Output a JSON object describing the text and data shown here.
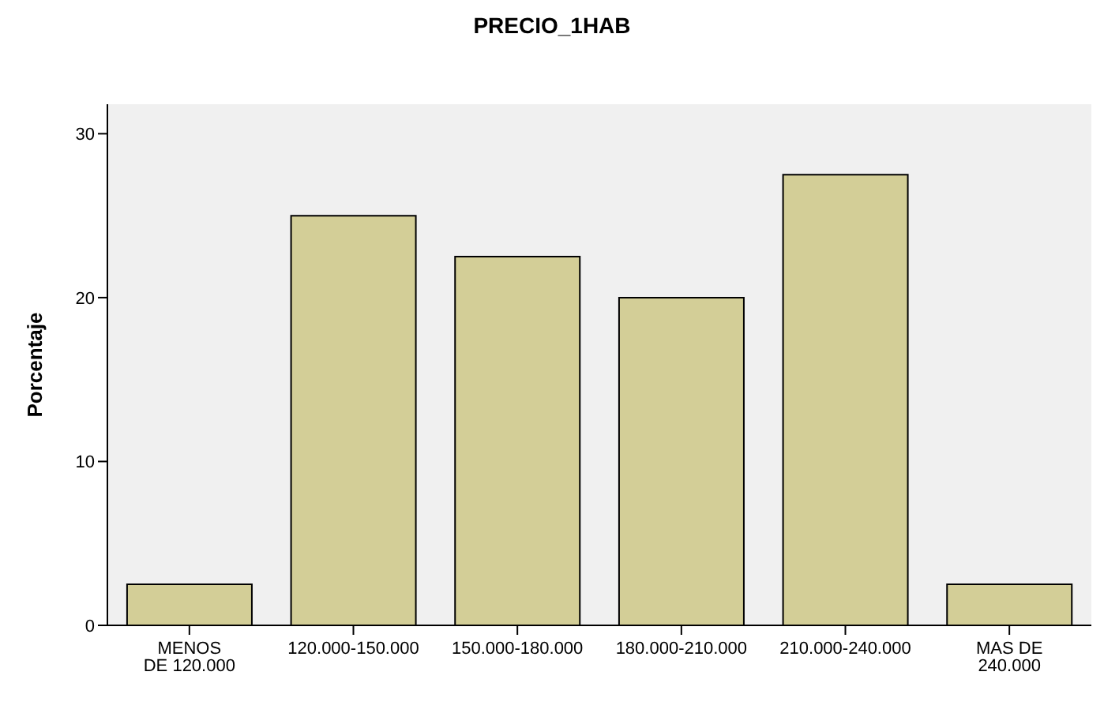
{
  "chart_data": {
    "type": "bar",
    "title": "PRECIO_1HAB",
    "ylabel": "Porcentaje",
    "categories": [
      "MENOS DE 120.000",
      "120.000-150.000",
      "150.000-180.000",
      "180.000-210.000",
      "210.000-240.000",
      "MAS DE 240.000"
    ],
    "values": [
      2.5,
      25,
      22.5,
      20,
      27.5,
      2.5
    ],
    "color": "#d3ce97",
    "ylim": [
      0,
      31.8
    ],
    "yticks": [
      0,
      10,
      20,
      30
    ],
    "grid": false,
    "legend": false
  }
}
